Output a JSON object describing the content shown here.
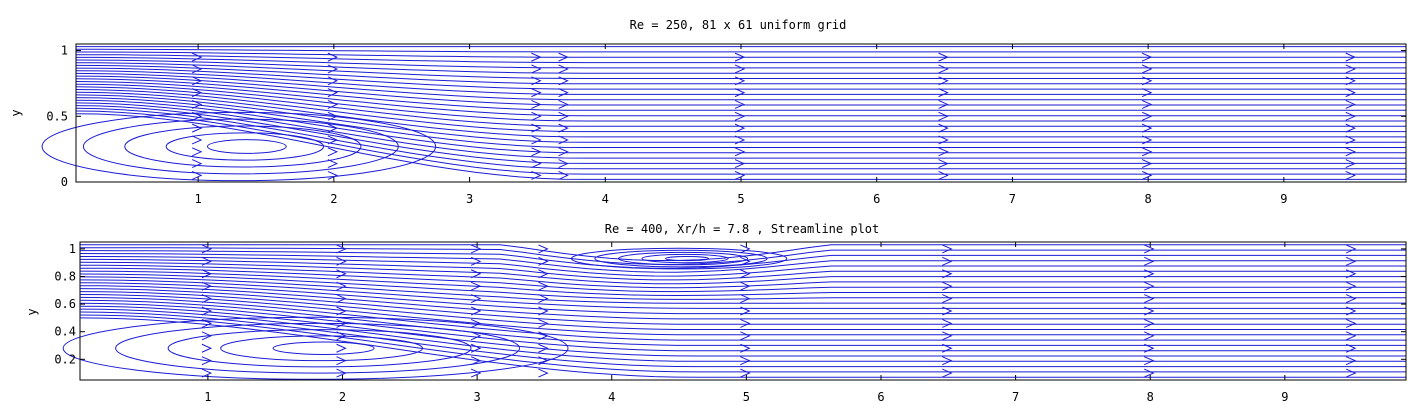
{
  "chart_data": [
    {
      "type": "streamline",
      "title": "Re = 250, 81 x 61 uniform grid",
      "xlabel": "",
      "ylabel": "y",
      "xlim": [
        0.1,
        9.9
      ],
      "ylim": [
        0,
        1.05
      ],
      "xticks": [
        1,
        2,
        3,
        4,
        5,
        6,
        7,
        8,
        9
      ],
      "yticks": [
        0,
        0.5,
        1
      ],
      "ytick_labels": [
        "0",
        "0.5",
        "1"
      ],
      "line_color": "#1c1cd6",
      "recirculation_zones": [
        {
          "center": [
            1.3,
            0.27
          ],
          "x_extent": [
            0.1,
            3.0
          ],
          "y_extent": [
            0.0,
            0.52
          ]
        }
      ],
      "arrow_columns_x": [
        1.0,
        2.0,
        3.5,
        3.7,
        5.0,
        6.5,
        8.0,
        9.5
      ]
    },
    {
      "type": "streamline",
      "title": "Re = 400, Xr/h = 7.8 , Streamline plot",
      "xlabel": "",
      "ylabel": "y",
      "xlim": [
        0.05,
        9.9
      ],
      "ylim": [
        0.05,
        1.05
      ],
      "xticks": [
        1,
        2,
        3,
        4,
        5,
        6,
        7,
        8,
        9
      ],
      "yticks": [
        0.2,
        0.4,
        0.6,
        0.8,
        1
      ],
      "ytick_labels": [
        "0.2",
        "0.4",
        "0.6",
        "0.8",
        "1"
      ],
      "line_color": "#1c1cd6",
      "recirculation_zones": [
        {
          "center": [
            1.8,
            0.28
          ],
          "x_extent": [
            0.05,
            3.8
          ],
          "y_extent": [
            0.05,
            0.5
          ]
        },
        {
          "center": [
            4.5,
            0.93
          ],
          "x_extent": [
            3.6,
            5.2
          ],
          "y_extent": [
            0.85,
            1.0
          ]
        }
      ],
      "arrow_columns_x": [
        1.0,
        2.0,
        3.0,
        3.5,
        5.0,
        6.5,
        8.0,
        9.5
      ]
    }
  ]
}
